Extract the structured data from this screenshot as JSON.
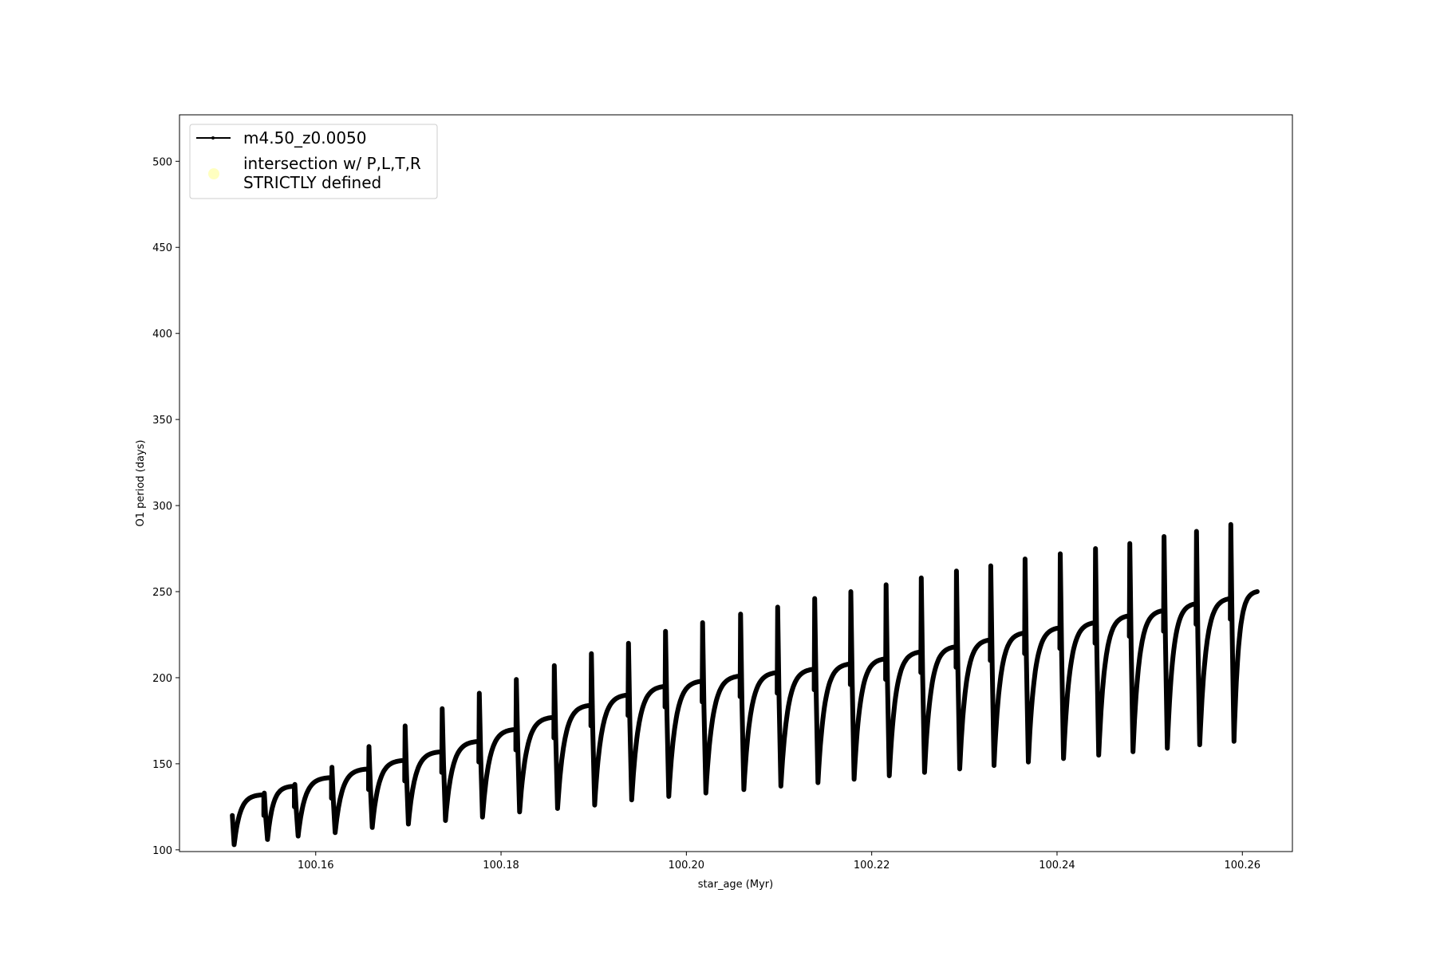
{
  "chart_data": {
    "type": "line",
    "title": "",
    "xlabel": "star_age (Myr)",
    "ylabel": "O1 period (days)",
    "xlim": [
      100.1453,
      100.2654
    ],
    "ylim": [
      99,
      527
    ],
    "xticks": [
      100.16,
      100.18,
      100.2,
      100.22,
      100.24,
      100.26
    ],
    "xtick_labels": [
      "100.16",
      "100.18",
      "100.20",
      "100.22",
      "100.24",
      "100.26"
    ],
    "yticks": [
      100,
      150,
      200,
      250,
      300,
      350,
      400,
      450,
      500
    ],
    "ytick_labels": [
      "100",
      "150",
      "200",
      "250",
      "300",
      "350",
      "400",
      "450",
      "500"
    ],
    "grid": false,
    "legend": {
      "placement": "upper-left",
      "entries": [
        {
          "label": "m4.50_z0.0050",
          "marker": "line-with-dots",
          "color": "#000000"
        },
        {
          "label_line1": "intersection w/ P,L,T,R",
          "label_line2": "STRICTLY defined",
          "marker": "circle",
          "color": "#ffffc0"
        }
      ]
    },
    "series": [
      {
        "name": "m4.50_z0.0050",
        "color": "#000000",
        "start": {
          "age": 100.151,
          "period": 120,
          "min_period": 103
        },
        "end": {
          "age": 100.2616,
          "period": 250
        },
        "cycles": [
          {
            "spike_age": 100.1544,
            "plateau": 132,
            "peak": 133,
            "min_after": 106
          },
          {
            "spike_age": 100.1577,
            "plateau": 137,
            "peak": 138,
            "min_after": 108
          },
          {
            "spike_age": 100.1617,
            "plateau": 142,
            "peak": 148,
            "min_after": 110
          },
          {
            "spike_age": 100.1657,
            "plateau": 147,
            "peak": 160,
            "min_after": 113
          },
          {
            "spike_age": 100.1696,
            "plateau": 152,
            "peak": 172,
            "min_after": 115
          },
          {
            "spike_age": 100.1736,
            "plateau": 157,
            "peak": 182,
            "min_after": 117
          },
          {
            "spike_age": 100.1776,
            "plateau": 163,
            "peak": 191,
            "min_after": 119
          },
          {
            "spike_age": 100.1816,
            "plateau": 170,
            "peak": 199,
            "min_after": 122
          },
          {
            "spike_age": 100.1857,
            "plateau": 177,
            "peak": 207,
            "min_after": 124
          },
          {
            "spike_age": 100.1897,
            "plateau": 184,
            "peak": 214,
            "min_after": 126
          },
          {
            "spike_age": 100.1937,
            "plateau": 190,
            "peak": 220,
            "min_after": 129
          },
          {
            "spike_age": 100.1977,
            "plateau": 195,
            "peak": 227,
            "min_after": 131
          },
          {
            "spike_age": 100.2017,
            "plateau": 198,
            "peak": 232,
            "min_after": 133
          },
          {
            "spike_age": 100.2058,
            "plateau": 201,
            "peak": 237,
            "min_after": 135
          },
          {
            "spike_age": 100.2098,
            "plateau": 203,
            "peak": 241,
            "min_after": 137
          },
          {
            "spike_age": 100.2138,
            "plateau": 205,
            "peak": 246,
            "min_after": 139
          },
          {
            "spike_age": 100.2177,
            "plateau": 208,
            "peak": 250,
            "min_after": 141
          },
          {
            "spike_age": 100.2215,
            "plateau": 211,
            "peak": 254,
            "min_after": 143
          },
          {
            "spike_age": 100.2253,
            "plateau": 215,
            "peak": 258,
            "min_after": 145
          },
          {
            "spike_age": 100.2291,
            "plateau": 218,
            "peak": 262,
            "min_after": 147
          },
          {
            "spike_age": 100.2328,
            "plateau": 222,
            "peak": 265,
            "min_after": 149
          },
          {
            "spike_age": 100.2365,
            "plateau": 226,
            "peak": 269,
            "min_after": 151
          },
          {
            "spike_age": 100.2403,
            "plateau": 229,
            "peak": 272,
            "min_after": 153
          },
          {
            "spike_age": 100.2441,
            "plateau": 232,
            "peak": 275,
            "min_after": 155
          },
          {
            "spike_age": 100.2478,
            "plateau": 236,
            "peak": 278,
            "min_after": 157
          },
          {
            "spike_age": 100.2515,
            "plateau": 239,
            "peak": 282,
            "min_after": 159
          },
          {
            "spike_age": 100.255,
            "plateau": 243,
            "peak": 285,
            "min_after": 161
          },
          {
            "spike_age": 100.2587,
            "plateau": 246,
            "peak": 289,
            "min_after": 163
          }
        ]
      }
    ]
  }
}
